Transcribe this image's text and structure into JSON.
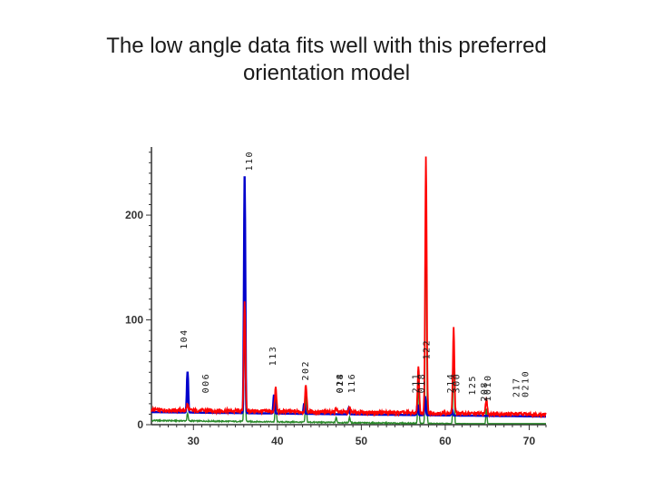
{
  "slide": {
    "title": "The low angle data fits well with this preferred\norientation model"
  },
  "chart_data": {
    "type": "line",
    "title": "The low angle data fits well with this preferred orientation model",
    "xlabel": "",
    "ylabel": "",
    "xlim": [
      25,
      72
    ],
    "ylim": [
      0,
      265
    ],
    "grid": false,
    "x_ticks": [
      "30",
      "40",
      "50",
      "60",
      "70"
    ],
    "y_ticks": [
      "0",
      "100",
      "200"
    ],
    "x_tick_values": [
      30,
      40,
      50,
      60,
      70
    ],
    "y_tick_values": [
      0,
      100,
      200
    ],
    "colors": {
      "observed": "#ff0000",
      "calculated": "#0000cc",
      "difference": "#2a8a2a"
    },
    "series": [
      {
        "role": "observed",
        "peaks": [
          {
            "x": 29.3,
            "y": 20
          },
          {
            "x": 36.1,
            "y": 120
          },
          {
            "x": 39.8,
            "y": 37
          },
          {
            "x": 43.4,
            "y": 40
          },
          {
            "x": 47.0,
            "y": 18
          },
          {
            "x": 48.6,
            "y": 18
          },
          {
            "x": 56.8,
            "y": 58
          },
          {
            "x": 57.7,
            "y": 258
          },
          {
            "x": 61.0,
            "y": 95
          },
          {
            "x": 64.9,
            "y": 28
          }
        ]
      },
      {
        "role": "calculated",
        "peaks": [
          {
            "x": 29.3,
            "y": 51
          },
          {
            "x": 36.1,
            "y": 238
          },
          {
            "x": 39.6,
            "y": 30
          },
          {
            "x": 43.2,
            "y": 22
          },
          {
            "x": 47.0,
            "y": 12
          },
          {
            "x": 48.5,
            "y": 18
          },
          {
            "x": 56.7,
            "y": 22
          },
          {
            "x": 57.6,
            "y": 30
          },
          {
            "x": 60.8,
            "y": 18
          },
          {
            "x": 64.7,
            "y": 12
          }
        ]
      }
    ],
    "peak_labels": [
      {
        "text": "006",
        "x": 31.8,
        "y": 30
      },
      {
        "text": "104",
        "x": 29.2,
        "y": 72
      },
      {
        "text": "110",
        "x": 37.0,
        "y": 242
      },
      {
        "text": "113",
        "x": 39.8,
        "y": 56
      },
      {
        "text": "202",
        "x": 43.7,
        "y": 42
      },
      {
        "text": "018",
        "x": 47.8,
        "y": 30
      },
      {
        "text": "024",
        "x": 47.8,
        "y": 30
      },
      {
        "text": "116",
        "x": 49.2,
        "y": 30
      },
      {
        "text": "211",
        "x": 56.8,
        "y": 30
      },
      {
        "text": "122",
        "x": 58.1,
        "y": 62
      },
      {
        "text": "018",
        "x": 57.5,
        "y": 30
      },
      {
        "text": "214",
        "x": 61.0,
        "y": 30
      },
      {
        "text": "300",
        "x": 61.7,
        "y": 30
      },
      {
        "text": "125",
        "x": 63.6,
        "y": 28
      },
      {
        "text": "208",
        "x": 65.0,
        "y": 22
      },
      {
        "text": "1010",
        "x": 65.4,
        "y": 22
      },
      {
        "text": "217",
        "x": 68.8,
        "y": 26
      },
      {
        "text": "0210",
        "x": 69.9,
        "y": 26
      }
    ]
  }
}
